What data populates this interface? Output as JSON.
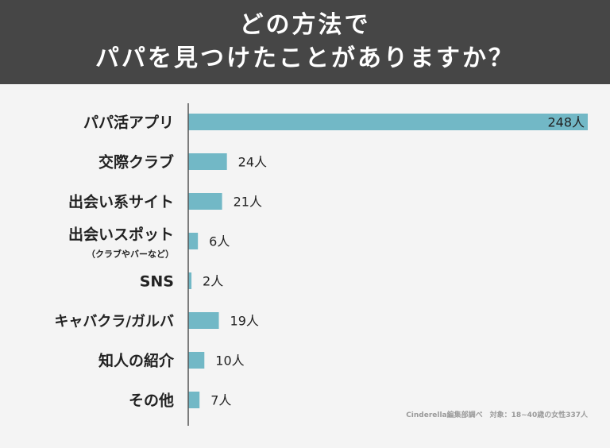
{
  "header": {
    "title_line1": "どの方法で",
    "title_line2": "パパを見つけたことがありますか？"
  },
  "chart_data": {
    "type": "bar",
    "orientation": "horizontal",
    "categories": [
      "パパ活アプリ",
      "交際クラブ",
      "出会い系サイト",
      "出会いスポット",
      "SNS",
      "キャバクラ/ガルバ",
      "知人の紹介",
      "その他"
    ],
    "category_sublabels": [
      "",
      "",
      "",
      "（クラブやバーなど）",
      "",
      "",
      "",
      ""
    ],
    "values": [
      248,
      24,
      21,
      6,
      2,
      19,
      10,
      7
    ],
    "value_labels": [
      "248人",
      "24人",
      "21人",
      "6人",
      "2人",
      "19人",
      "10人",
      "7人"
    ],
    "unit": "人",
    "xlim": [
      0,
      248
    ],
    "bar_color": "#72b8c6",
    "grid": false
  },
  "footer": {
    "source": "Cinderella編集部調べ　対象：18~40歳の女性337人"
  }
}
